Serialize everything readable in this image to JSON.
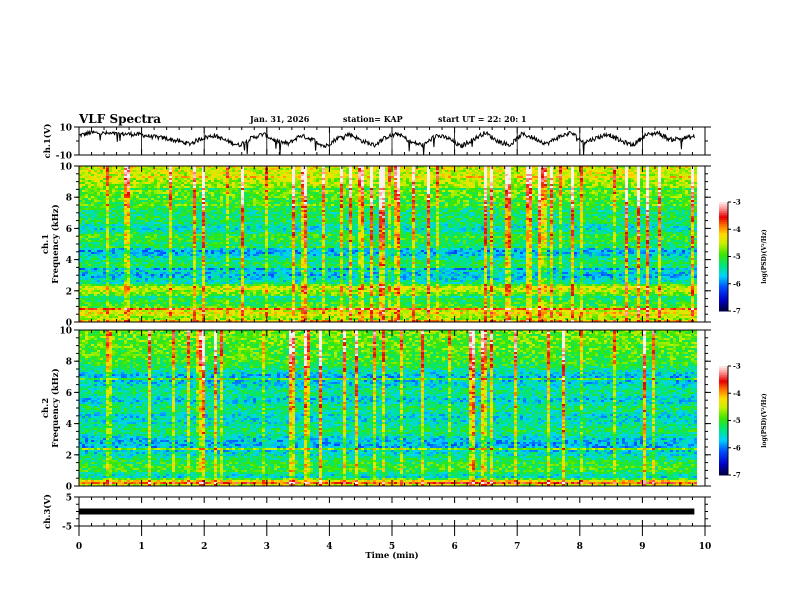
{
  "header": {
    "title": "VLF Spectra",
    "date": "Jan. 31, 2026",
    "station": "station= KAP",
    "start_ut": "start  UT =   22: 20: 1"
  },
  "chart_data": [
    {
      "type": "line",
      "name": "ch1-waveform",
      "ylabel": "ch.1(V)",
      "ylim": [
        -10,
        10
      ],
      "yticks": [
        "10",
        "-10"
      ],
      "xlim": [
        0,
        10
      ],
      "data_end_min": 9.83,
      "description": "noisy voltage trace roughly between -8 and 8 V",
      "series_profile": [
        4,
        6,
        5.5,
        5,
        5,
        4.5,
        3,
        2,
        0,
        -2,
        2,
        4,
        0,
        -3,
        2,
        5,
        0,
        -2,
        4,
        1,
        -4,
        2,
        5,
        0,
        -3,
        3,
        5,
        -1,
        -3,
        4,
        2,
        -4,
        1,
        6,
        0,
        -3,
        5,
        2,
        -2,
        3,
        6,
        -1,
        2,
        5,
        0,
        -3,
        4,
        6,
        1,
        2,
        3
      ]
    },
    {
      "type": "heatmap",
      "name": "ch1-spectrogram",
      "ylabel": "ch.1\nFrequency (kHz)",
      "ylabel_line1": "ch.1",
      "ylabel_line2": "Frequency (kHz)",
      "ylim": [
        0,
        10
      ],
      "yticks": [
        "0",
        "2",
        "4",
        "6",
        "8",
        "10"
      ],
      "xlim": [
        0,
        10
      ],
      "data_end_min": 9.83,
      "colorbar": {
        "label": "log(PSD)(V²/Hz)",
        "range": [
          -7,
          -3
        ],
        "ticks": [
          "-3",
          "-4",
          "-5",
          "-6",
          "-7"
        ]
      },
      "bands_khz_level": [
        [
          0.0,
          -4.0
        ],
        [
          0.3,
          -4.6
        ],
        [
          0.6,
          -4.3
        ],
        [
          1.0,
          -5.0
        ],
        [
          1.5,
          -5.2
        ],
        [
          2.2,
          -4.4
        ],
        [
          2.5,
          -5.4
        ],
        [
          3.0,
          -5.8
        ],
        [
          3.6,
          -5.2
        ],
        [
          4.0,
          -5.3
        ],
        [
          4.5,
          -5.9
        ],
        [
          5.0,
          -5.2
        ],
        [
          5.5,
          -5.0
        ],
        [
          6.0,
          -5.6
        ],
        [
          6.5,
          -5.2
        ],
        [
          7.0,
          -5.3
        ],
        [
          8.0,
          -4.9
        ],
        [
          9.0,
          -4.6
        ],
        [
          10.0,
          -4.4
        ]
      ]
    },
    {
      "type": "heatmap",
      "name": "ch2-spectrogram",
      "ylabel_line1": "ch.2",
      "ylabel_line2": "Frequency (kHz)",
      "ylim": [
        0,
        10
      ],
      "yticks": [
        "0",
        "2",
        "4",
        "6",
        "8",
        "10"
      ],
      "xlim": [
        0,
        10
      ],
      "data_end_min": 9.83,
      "colorbar": {
        "label": "log(PSD)(V²/Hz)",
        "range": [
          -7,
          -3
        ],
        "ticks": [
          "-3",
          "-4",
          "-5",
          "-6",
          "-7"
        ]
      },
      "bands_khz_level": [
        [
          0.0,
          -4.5
        ],
        [
          0.3,
          -4.2
        ],
        [
          0.6,
          -5.7
        ],
        [
          1.0,
          -5.0
        ],
        [
          1.5,
          -5.1
        ],
        [
          2.0,
          -5.5
        ],
        [
          2.5,
          -5.8
        ],
        [
          3.0,
          -5.7
        ],
        [
          3.5,
          -5.2
        ],
        [
          4.0,
          -5.5
        ],
        [
          4.5,
          -5.6
        ],
        [
          5.0,
          -5.2
        ],
        [
          5.5,
          -5.7
        ],
        [
          6.0,
          -5.3
        ],
        [
          6.5,
          -5.6
        ],
        [
          7.0,
          -5.8
        ],
        [
          7.6,
          -5.2
        ],
        [
          8.0,
          -5.0
        ],
        [
          9.0,
          -4.9
        ],
        [
          10.0,
          -4.8
        ]
      ]
    },
    {
      "type": "line",
      "name": "ch3-waveform",
      "ylabel": "ch.3(V)",
      "ylim": [
        -5,
        5
      ],
      "yticks": [
        "5",
        "-5"
      ],
      "xlim": [
        0,
        10
      ],
      "data_end_min": 9.83,
      "constant_value": 0,
      "description": "flat thick trace at about 0 V"
    }
  ],
  "xaxis": {
    "label": "Time  (min)",
    "ticks": [
      "0",
      "1",
      "2",
      "3",
      "4",
      "5",
      "6",
      "7",
      "8",
      "9",
      "10"
    ],
    "range": [
      0,
      10
    ]
  }
}
